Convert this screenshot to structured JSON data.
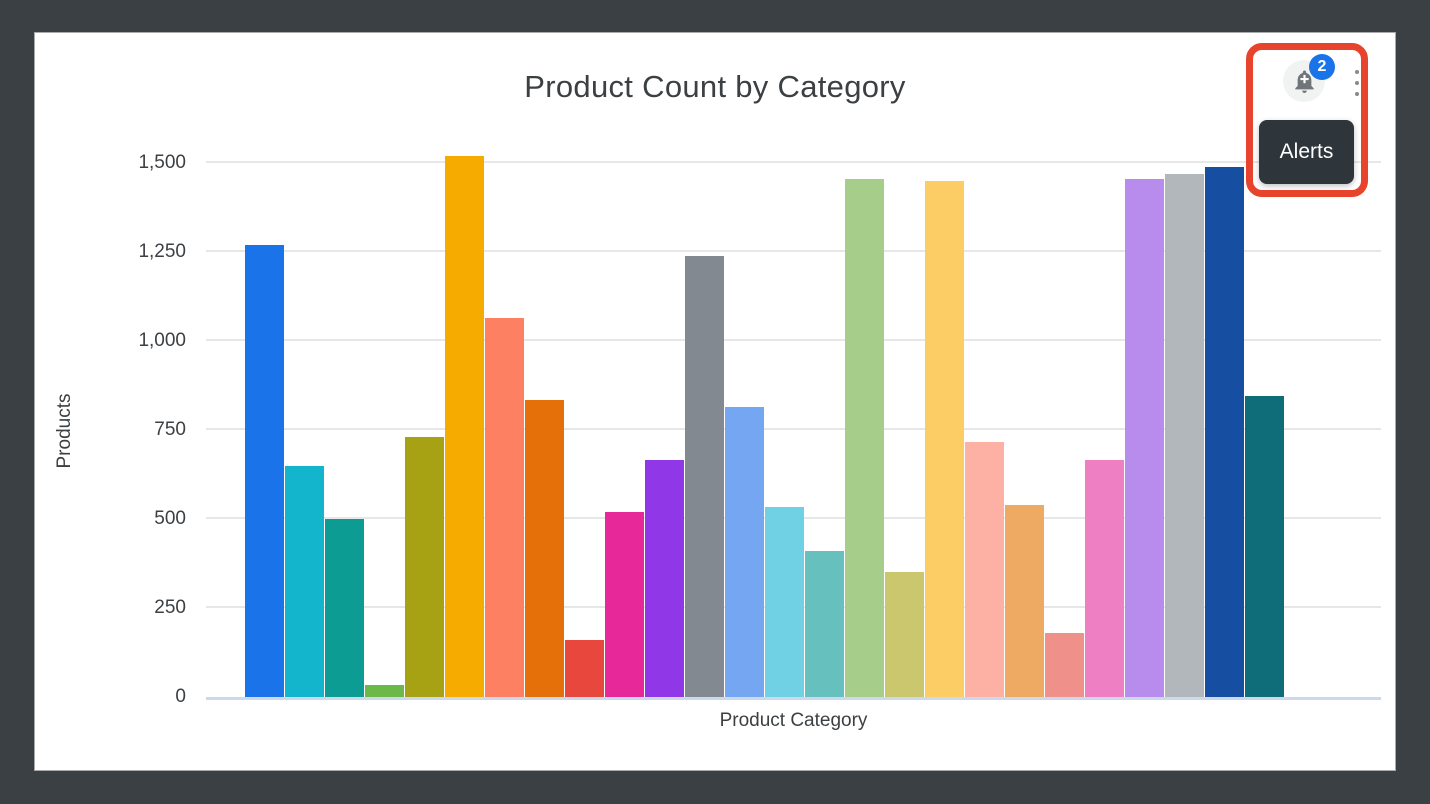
{
  "window": {
    "frame_color": "#3b4045",
    "card_background": "#ffffff",
    "card_border_color": "#a8aaad"
  },
  "header": {
    "title": "Product Count by Category"
  },
  "toolbar": {
    "alerts_button": {
      "icon": "notification-add-bell-icon",
      "badge_count": "2",
      "badge_color": "#1a73e8"
    },
    "more_menu_icon": "vertical-three-dots-icon",
    "tooltip": {
      "text": "Alerts",
      "background": "#2e353b"
    }
  },
  "annotation": {
    "shape": "rounded-rectangle-highlight",
    "color": "#e8432d"
  },
  "chart_data": {
    "type": "bar",
    "title": "Product Count by Category",
    "xlabel": "Product Category",
    "ylabel": "Products",
    "ylim": [
      0,
      1500
    ],
    "yticks": [
      0,
      250,
      500,
      750,
      1000,
      1250,
      1500
    ],
    "ytick_labels": [
      "0",
      "250",
      "500",
      "750",
      "1,000",
      "1,250",
      "1,500"
    ],
    "x_tick_labels_visible": false,
    "grid": "horizontal",
    "legend": "none",
    "values": [
      1270,
      650,
      500,
      35,
      730,
      1520,
      1065,
      835,
      160,
      520,
      665,
      1240,
      815,
      535,
      410,
      1455,
      350,
      1450,
      715,
      540,
      180,
      665,
      1455,
      1470,
      1490,
      845
    ],
    "colors": [
      "#1a73e8",
      "#12b5cb",
      "#0d9c93",
      "#6cb849",
      "#a7a213",
      "#f6ab00",
      "#fe8062",
      "#e56f08",
      "#e8473d",
      "#e72898",
      "#9038e8",
      "#828990",
      "#74a6f2",
      "#6fd1e3",
      "#66c0bd",
      "#a6cd8a",
      "#cac76f",
      "#fbcd64",
      "#fdb1a4",
      "#eeaa62",
      "#f0908a",
      "#ef7fc3",
      "#b78ced",
      "#b2b7bc",
      "#164ea1",
      "#0e6d79"
    ],
    "gridline_color": "#e7e7e7",
    "baseline_color": "#ccd8ec",
    "text_color": "#3c4043"
  }
}
